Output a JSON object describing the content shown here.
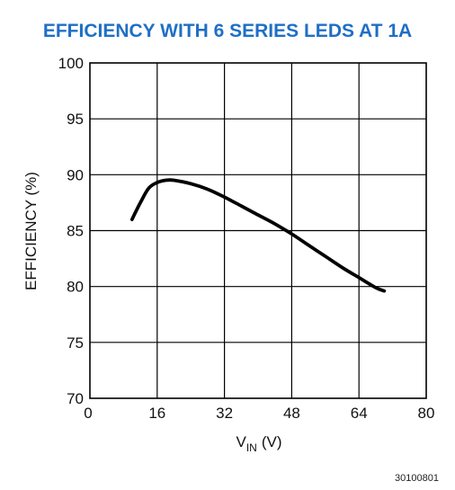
{
  "chart_data": {
    "type": "line",
    "title": "EFFICIENCY WITH 6 SERIES LEDS AT 1A",
    "xlabel": "V",
    "xlabel_sub": "IN",
    "xlabel_unit": "(V)",
    "ylabel": "EFFICIENCY (%)",
    "xlim": [
      0,
      80
    ],
    "ylim": [
      70,
      100
    ],
    "xticks": [
      0,
      16,
      32,
      48,
      64,
      80
    ],
    "yticks": [
      70,
      75,
      80,
      85,
      90,
      95,
      100
    ],
    "grid": true,
    "series": [
      {
        "x": [
          10,
          12,
          14,
          16,
          18,
          20,
          24,
          28,
          32,
          36,
          40,
          44,
          48,
          52,
          56,
          60,
          64,
          68,
          70
        ],
        "y": [
          86.0,
          87.5,
          88.8,
          89.3,
          89.5,
          89.5,
          89.2,
          88.7,
          88.0,
          87.2,
          86.4,
          85.6,
          84.7,
          83.7,
          82.7,
          81.7,
          80.8,
          79.9,
          79.6
        ]
      }
    ],
    "figure_id": "30100801"
  }
}
